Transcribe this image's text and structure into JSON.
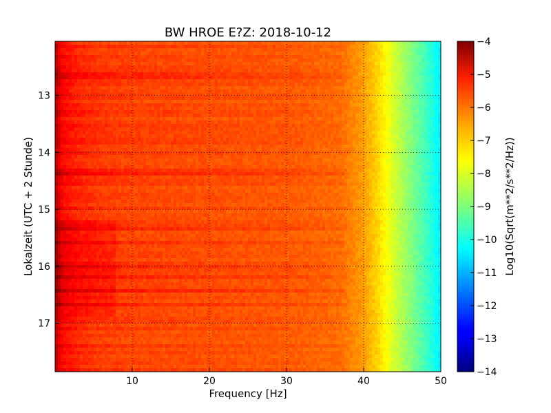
{
  "chart_data": {
    "type": "heatmap",
    "title": "BW HROE E?Z: 2018-10-12",
    "xlabel": "Frequency [Hz]",
    "ylabel": "Lokalzeit (UTC + 2 Stunde)",
    "xlim": [
      0,
      50
    ],
    "ylim": [
      12.05,
      17.85
    ],
    "y_inverted": true,
    "x_ticks": [
      10,
      20,
      30,
      40,
      50
    ],
    "x_tick_labels": [
      "10",
      "20",
      "30",
      "40",
      "50"
    ],
    "y_ticks": [
      13,
      14,
      15,
      16,
      17
    ],
    "y_tick_labels": [
      "13",
      "14",
      "15",
      "16",
      "17"
    ],
    "grid": true,
    "colormap": "jet",
    "colorbar": {
      "label": "Log10(Sqrt(m**2/s**2/Hz))",
      "range": [
        -14,
        -4
      ],
      "ticks": [
        -4,
        -5,
        -6,
        -7,
        -8,
        -9,
        -10,
        -11,
        -12,
        -13,
        -14
      ],
      "tick_labels": [
        "−4",
        "−5",
        "−6",
        "−7",
        "−8",
        "−9",
        "−10",
        "−11",
        "−12",
        "−13",
        "−14"
      ]
    },
    "frequency_profile_hz": [
      0,
      0.5,
      1,
      3,
      6,
      10,
      20,
      30,
      37,
      40,
      42,
      44,
      46,
      48,
      50
    ],
    "frequency_profile_level": [
      -4.6,
      -4.9,
      -5.3,
      -5.6,
      -5.8,
      -5.9,
      -6.0,
      -6.1,
      -6.3,
      -6.8,
      -7.4,
      -8.2,
      -8.9,
      -9.6,
      -10.4
    ],
    "strong_bands_hours": [
      12.6,
      12.7,
      14.35,
      15.35,
      15.6,
      16.0,
      16.2,
      16.45,
      16.65
    ]
  }
}
